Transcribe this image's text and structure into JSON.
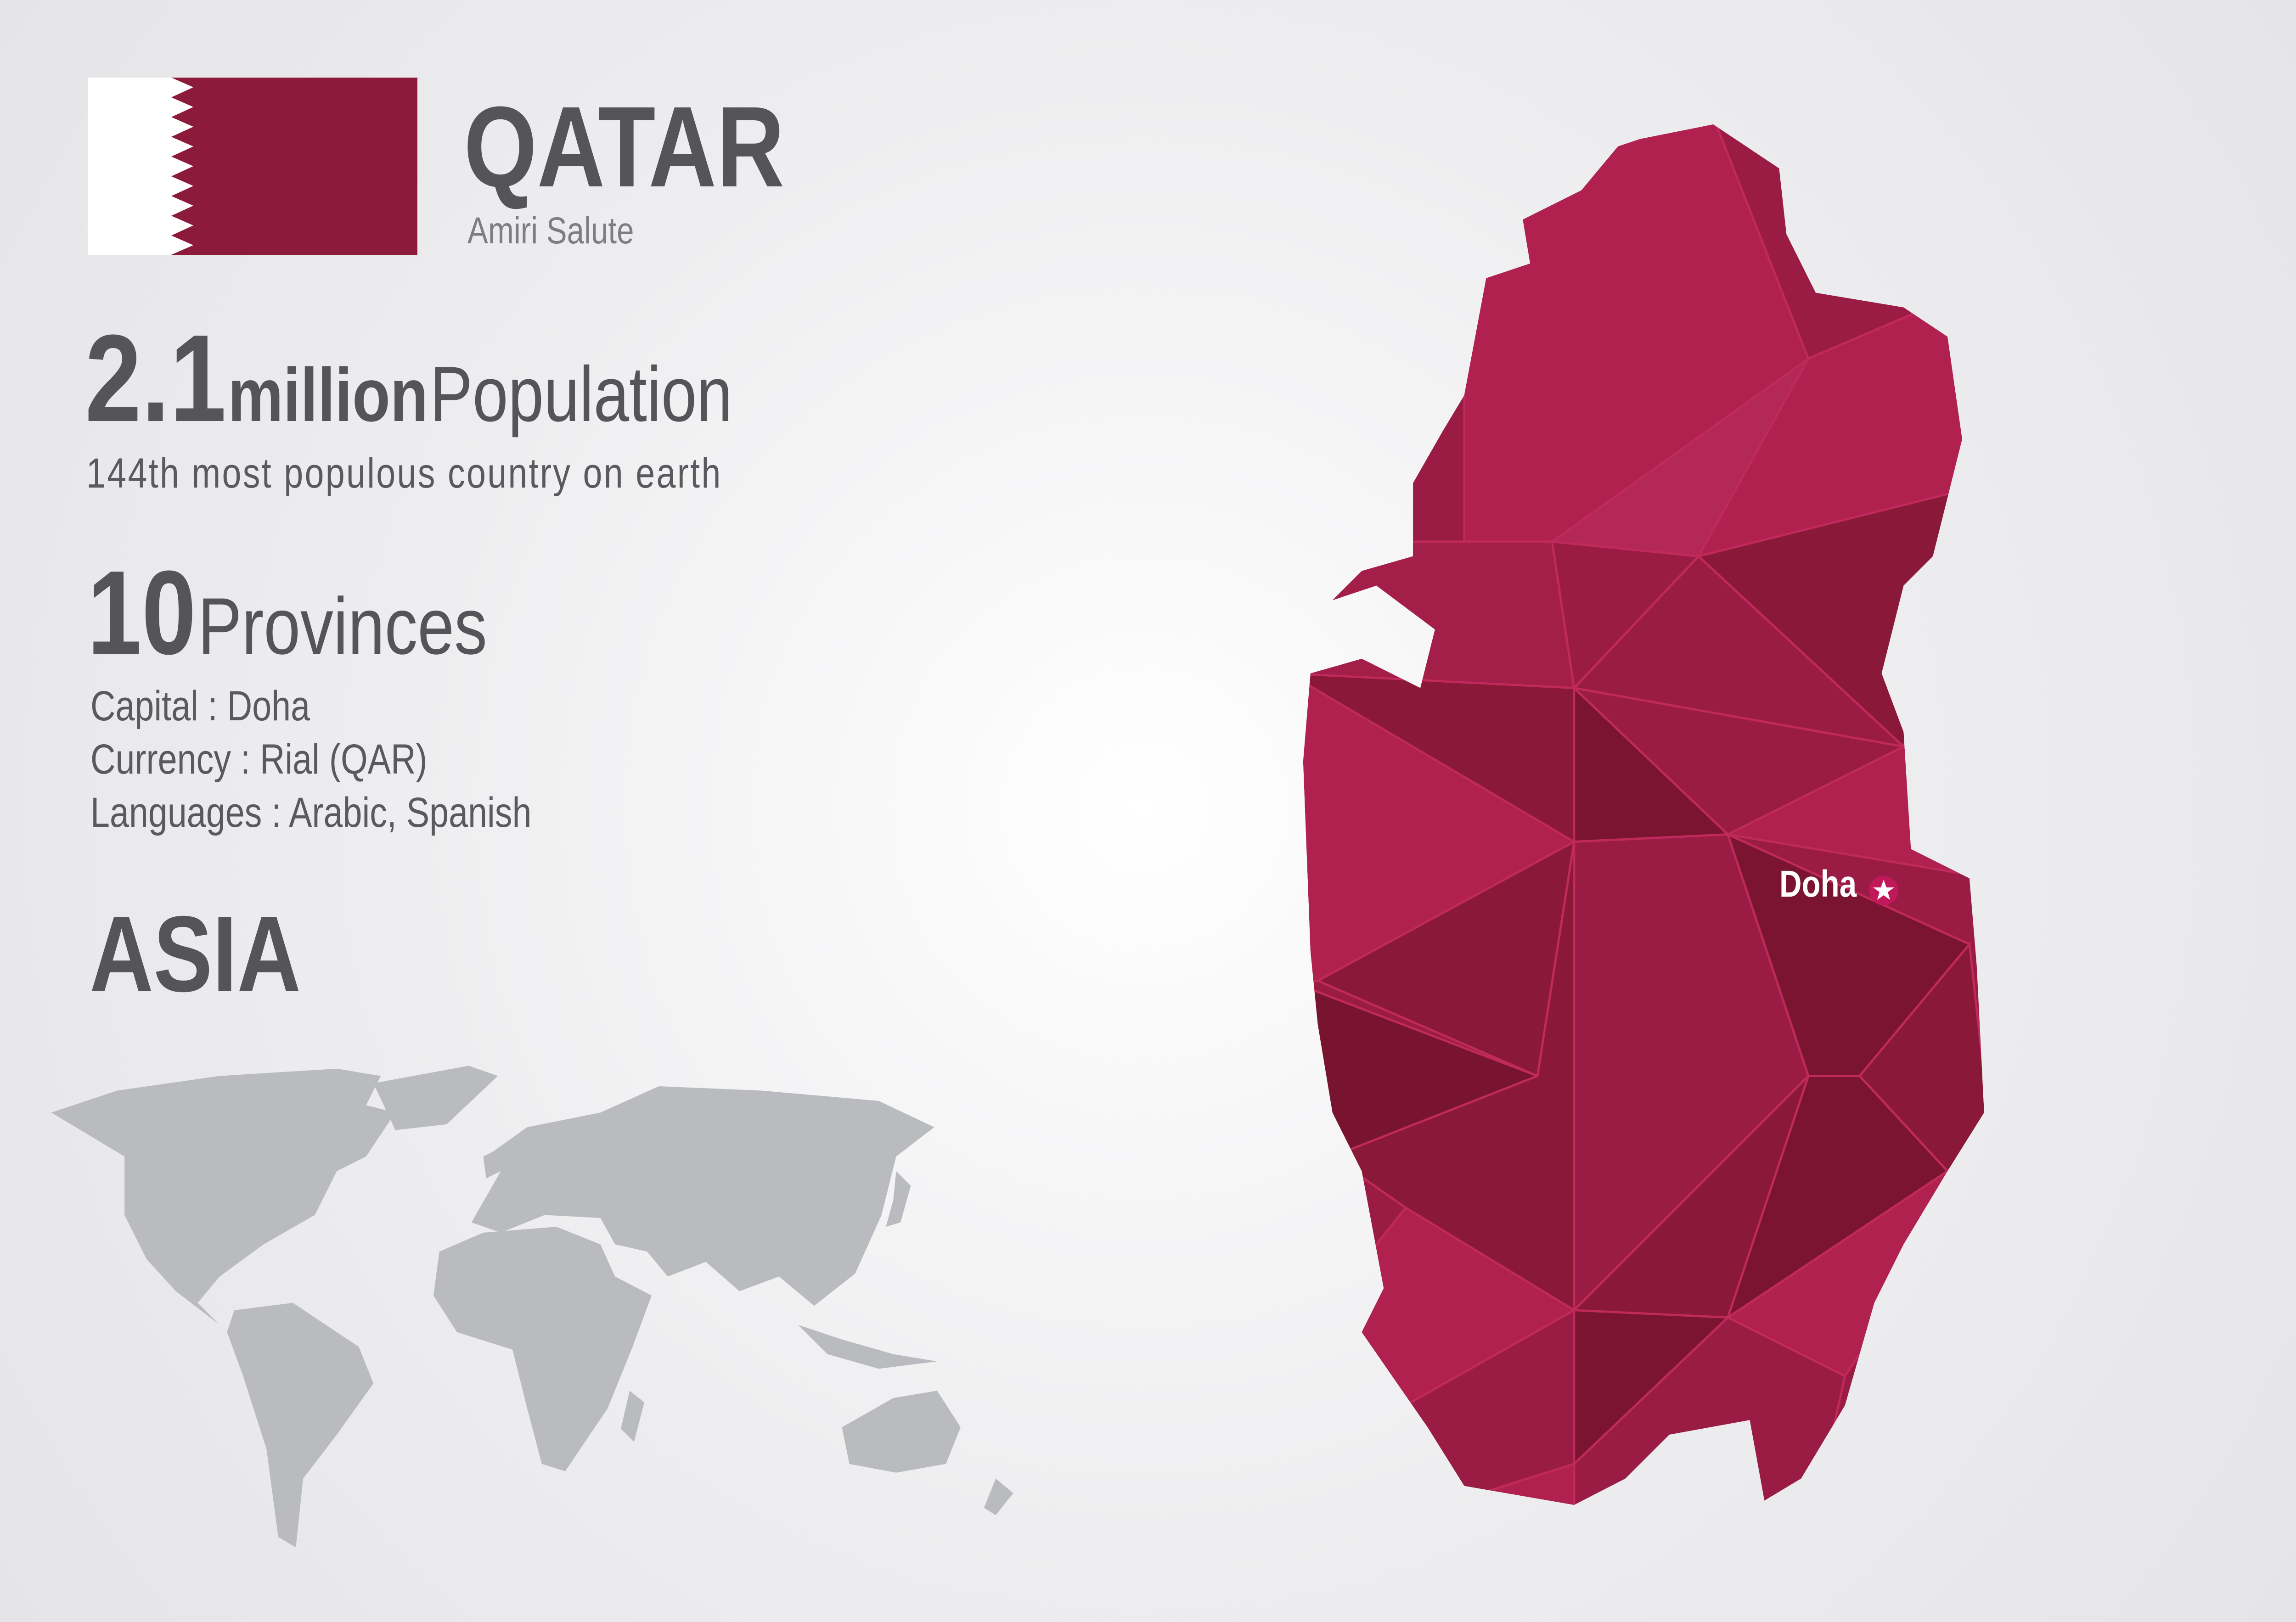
{
  "country": {
    "name": "QATAR",
    "anthem": "Amiri Salute",
    "flag": {
      "white": "#ffffff",
      "maroon": "#8c1a3b"
    }
  },
  "population": {
    "value": "2.1",
    "unit": "million",
    "label": "Population",
    "rank_text": "144th most populous country on earth"
  },
  "provinces": {
    "value": "10",
    "label": "Provinces"
  },
  "facts": [
    {
      "text": "Capital : Doha"
    },
    {
      "text": "Currency : Rial (QAR)"
    },
    {
      "text": "Languages : Arabic, Spanish"
    }
  ],
  "continent": "ASIA",
  "map": {
    "capital_label": "Doha",
    "capital_icon": "star-icon",
    "colors": {
      "bright": "#b02150",
      "mid": "#9a1c44",
      "dark": "#8a1838",
      "darkest": "#781330",
      "world": "#b9bbbe",
      "text": "#545459"
    }
  }
}
